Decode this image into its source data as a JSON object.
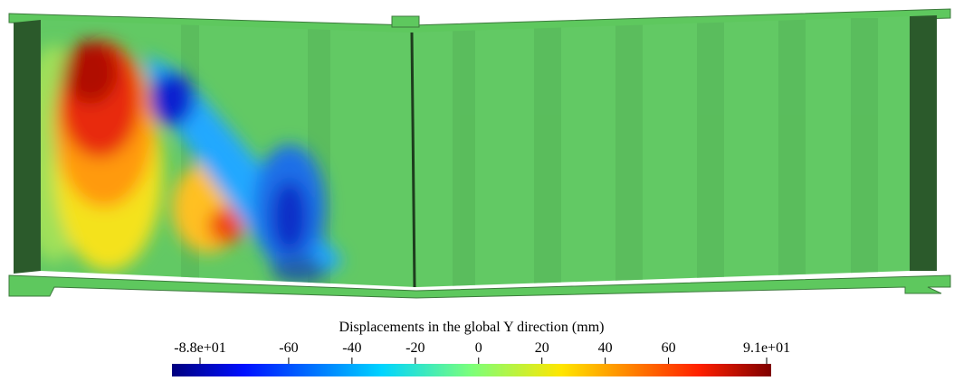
{
  "colorbar": {
    "title": "Displacements in the global Y direction  (mm)",
    "range": [
      -88,
      91
    ],
    "ticks": [
      {
        "value": -88,
        "label": "-8.8e+01"
      },
      -60,
      -40,
      -20,
      0,
      20,
      40,
      60,
      {
        "value": 91,
        "label": "9.1e+01"
      }
    ]
  }
}
